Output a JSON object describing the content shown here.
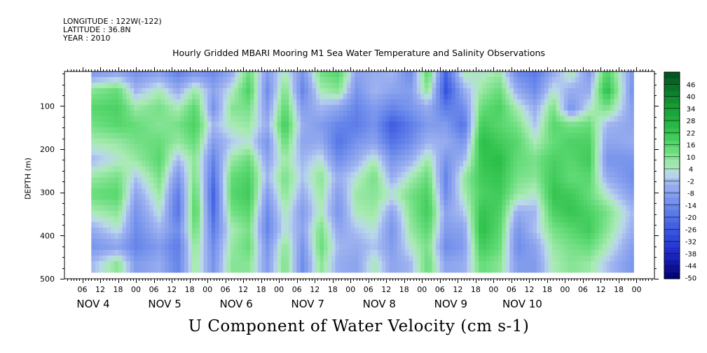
{
  "header": {
    "longitude": "LONGITUDE : 122W(-122)",
    "latitude": "LATITUDE : 36.8N",
    "year": "YEAR : 2010"
  },
  "chart_data": {
    "type": "heatmap",
    "title": "Hourly Gridded MBARI Mooring M1 Sea Water Temperature and Salinity Observations",
    "xlabel": "U Component of Water Velocity (cm s-1)",
    "ylabel": "DEPTH (m)",
    "y_ticks": [
      100,
      200,
      300,
      400,
      500
    ],
    "ylim": [
      500,
      20
    ],
    "x_hour_ticks": [
      "06",
      "12",
      "18",
      "00",
      "06",
      "12",
      "18",
      "00",
      "06",
      "12",
      "18",
      "00",
      "06",
      "12",
      "18",
      "00",
      "06",
      "12",
      "18",
      "00",
      "06",
      "12",
      "18",
      "00",
      "06",
      "12",
      "18",
      "00",
      "06",
      "12",
      "18",
      "00"
    ],
    "x_day_labels": [
      "NOV 4",
      "NOV 5",
      "NOV 6",
      "NOV 7",
      "NOV 8",
      "NOV 9",
      "NOV 10"
    ],
    "colorbar_labels": [
      "46",
      "40",
      "34",
      "28",
      "22",
      "16",
      "10",
      "4",
      "-2",
      "-8",
      "-14",
      "-20",
      "-26",
      "-32",
      "-38",
      "-44",
      "-50"
    ],
    "colorbar_range": [
      -50,
      49
    ],
    "colorbar_step": 3,
    "colors": {
      "negative": "#3b46d8",
      "positive": "#2fbf3a",
      "neutral": "#a8c8f0"
    },
    "data_extent": {
      "time_hours": [
        9,
        191
      ],
      "depth_m": [
        20,
        485
      ]
    },
    "time_columns": [
      {
        "hour": 9,
        "profile": [
          -10,
          8,
          14,
          10,
          4,
          -4,
          6,
          12,
          4,
          -6,
          -12,
          -4
        ]
      },
      {
        "hour": 18,
        "profile": [
          -6,
          12,
          16,
          14,
          6,
          2,
          10,
          14,
          8,
          2,
          -8,
          8
        ]
      },
      {
        "hour": 24,
        "profile": [
          -12,
          -4,
          6,
          12,
          10,
          6,
          -2,
          -8,
          -12,
          -14,
          -16,
          -10
        ]
      },
      {
        "hour": 32,
        "profile": [
          -8,
          4,
          10,
          8,
          12,
          14,
          10,
          6,
          2,
          -4,
          -10,
          -6
        ]
      },
      {
        "hour": 38,
        "profile": [
          -16,
          -6,
          4,
          10,
          6,
          -4,
          -12,
          -18,
          -20,
          -14,
          -18,
          -16
        ]
      },
      {
        "hour": 44,
        "profile": [
          -10,
          6,
          14,
          16,
          12,
          8,
          10,
          14,
          16,
          12,
          8,
          6
        ]
      },
      {
        "hour": 50,
        "profile": [
          -14,
          -8,
          -12,
          -4,
          -10,
          -16,
          -20,
          -24,
          -22,
          -18,
          -14,
          -12
        ]
      },
      {
        "hour": 56,
        "profile": [
          -6,
          2,
          8,
          4,
          -2,
          6,
          12,
          14,
          10,
          4,
          6,
          8
        ]
      },
      {
        "hour": 62,
        "profile": [
          12,
          16,
          10,
          6,
          2,
          12,
          16,
          18,
          14,
          10,
          12,
          8
        ]
      },
      {
        "hour": 68,
        "profile": [
          -10,
          -14,
          -10,
          -6,
          -12,
          -8,
          -4,
          -10,
          -14,
          -16,
          -12,
          -10
        ]
      },
      {
        "hour": 74,
        "profile": [
          4,
          10,
          14,
          18,
          12,
          6,
          10,
          8,
          4,
          2,
          8,
          10
        ]
      },
      {
        "hour": 80,
        "profile": [
          -12,
          -16,
          -10,
          -6,
          -8,
          -4,
          -2,
          -6,
          -10,
          -8,
          -12,
          -14
        ]
      },
      {
        "hour": 86,
        "profile": [
          10,
          4,
          -4,
          -10,
          -6,
          2,
          8,
          6,
          4,
          10,
          12,
          8
        ]
      },
      {
        "hour": 92,
        "profile": [
          14,
          8,
          -8,
          -16,
          -20,
          -14,
          -6,
          -10,
          -12,
          -8,
          -4,
          -6
        ]
      },
      {
        "hour": 98,
        "profile": [
          -8,
          -12,
          -16,
          -18,
          -12,
          -6,
          2,
          6,
          4,
          -2,
          -6,
          -8
        ]
      },
      {
        "hour": 104,
        "profile": [
          -6,
          -4,
          -10,
          -12,
          -8,
          4,
          10,
          8,
          6,
          2,
          -2,
          4
        ]
      },
      {
        "hour": 110,
        "profile": [
          -4,
          -8,
          -16,
          -26,
          -20,
          -12,
          -6,
          2,
          -8,
          -12,
          -10,
          -8
        ]
      },
      {
        "hour": 116,
        "profile": [
          -14,
          -10,
          -12,
          -18,
          -14,
          -6,
          4,
          10,
          8,
          6,
          2,
          -4
        ]
      },
      {
        "hour": 122,
        "profile": [
          14,
          8,
          -6,
          -10,
          -4,
          6,
          12,
          16,
          18,
          14,
          10,
          12
        ]
      },
      {
        "hour": 128,
        "profile": [
          -24,
          -28,
          -18,
          -10,
          -6,
          -12,
          -16,
          -14,
          -8,
          -10,
          -14,
          -8
        ]
      },
      {
        "hour": 134,
        "profile": [
          4,
          -6,
          -14,
          -20,
          -12,
          -4,
          6,
          4,
          -2,
          -8,
          -10,
          -6
        ]
      },
      {
        "hour": 140,
        "profile": [
          2,
          6,
          12,
          18,
          22,
          20,
          18,
          16,
          20,
          22,
          18,
          12
        ]
      },
      {
        "hour": 146,
        "profile": [
          6,
          12,
          16,
          14,
          18,
          22,
          20,
          18,
          16,
          14,
          12,
          8
        ]
      },
      {
        "hour": 152,
        "profile": [
          -14,
          -6,
          4,
          10,
          14,
          12,
          10,
          6,
          -6,
          -12,
          -14,
          -10
        ]
      },
      {
        "hour": 158,
        "profile": [
          -18,
          -14,
          -6,
          -2,
          4,
          10,
          8,
          2,
          -4,
          -2,
          -8,
          -10
        ]
      },
      {
        "hour": 164,
        "profile": [
          -6,
          2,
          10,
          14,
          12,
          16,
          18,
          20,
          16,
          10,
          6,
          4
        ]
      },
      {
        "hour": 170,
        "profile": [
          4,
          -6,
          -12,
          10,
          16,
          14,
          12,
          18,
          20,
          14,
          10,
          8
        ]
      },
      {
        "hour": 176,
        "profile": [
          -10,
          -6,
          2,
          12,
          16,
          18,
          14,
          12,
          16,
          18,
          12,
          6
        ]
      },
      {
        "hour": 182,
        "profile": [
          16,
          22,
          10,
          -4,
          -8,
          -12,
          -6,
          2,
          10,
          8,
          4,
          -2
        ]
      },
      {
        "hour": 191,
        "profile": [
          -12,
          -14,
          -10,
          -8,
          -6,
          -12,
          -14,
          -10,
          -4,
          -6,
          -10,
          -12
        ]
      }
    ],
    "depth_levels": [
      25,
      65,
      105,
      145,
      185,
      225,
      265,
      305,
      345,
      385,
      425,
      465
    ]
  }
}
